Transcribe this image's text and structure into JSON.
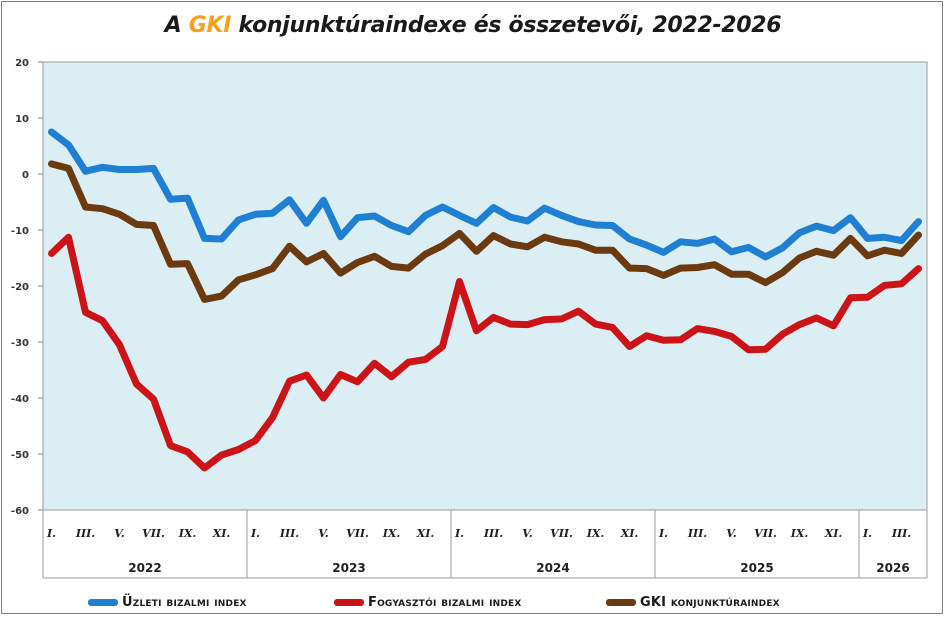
{
  "title": {
    "prefix": "A ",
    "accent": "GKI",
    "suffix": " konjunktúraindexe és összetevői, 2022-2026",
    "accent_color": "#f7a01e"
  },
  "chart_data": {
    "type": "line",
    "title": "A GKI konjunktúraindexe és összetevői, 2022-2026",
    "ylim": [
      -60,
      20
    ],
    "yticks": [
      20,
      10,
      0,
      -10,
      -20,
      -30,
      -40,
      -50,
      -60
    ],
    "grid": false,
    "legend_position": "bottom",
    "plot_background": "#dbeef4",
    "month_tick_labels": [
      "I.",
      "III.",
      "V.",
      "VII.",
      "IX.",
      "XI."
    ],
    "years": [
      "2022",
      "2023",
      "2024",
      "2025",
      "2026"
    ],
    "x_count": 52,
    "series": [
      {
        "name": "Üzleti bizalmi index",
        "color": "#1f7fd3",
        "values": [
          7.5,
          5.2,
          0.5,
          1.2,
          0.8,
          0.8,
          1.0,
          -4.5,
          -4.3,
          -11.5,
          -11.6,
          -8.2,
          -7.2,
          -7.0,
          -4.6,
          -8.8,
          -4.7,
          -11.2,
          -7.8,
          -7.5,
          -9.2,
          -10.3,
          -7.4,
          -5.9,
          -7.4,
          -8.8,
          -6.0,
          -7.7,
          -8.4,
          -6.1,
          -7.4,
          -8.5,
          -9.1,
          -9.2,
          -11.6,
          -12.7,
          -14.0,
          -12.1,
          -12.4,
          -11.6,
          -13.9,
          -13.1,
          -14.8,
          -13.2,
          -10.5,
          -9.3,
          -10.1,
          -7.8,
          -11.5,
          -11.3,
          -11.9,
          -8.5
        ]
      },
      {
        "name": "Fogyasztói bizalmi index",
        "color": "#cc1418",
        "values": [
          -14.2,
          -11.3,
          -24.7,
          -26.2,
          -30.5,
          -37.5,
          -40.2,
          -48.5,
          -49.6,
          -52.5,
          -50.2,
          -49.2,
          -47.6,
          -43.5,
          -37.0,
          -35.9,
          -40.0,
          -35.8,
          -37.1,
          -33.8,
          -36.2,
          -33.6,
          -33.1,
          -30.8,
          -19.2,
          -28.0,
          -25.6,
          -26.8,
          -26.9,
          -26.0,
          -25.9,
          -24.5,
          -26.8,
          -27.4,
          -30.8,
          -28.9,
          -29.7,
          -29.6,
          -27.6,
          -28.1,
          -29.0,
          -31.4,
          -31.3,
          -28.6,
          -26.9,
          -25.7,
          -27.1,
          -22.1,
          -22.0,
          -19.9,
          -19.6,
          -16.9
        ]
      },
      {
        "name": "GKI konjunktúraindex",
        "color": "#6b3a10",
        "values": [
          1.8,
          1.0,
          -5.9,
          -6.2,
          -7.2,
          -9.0,
          -9.2,
          -16.1,
          -16.0,
          -22.4,
          -21.8,
          -18.9,
          -18.0,
          -16.9,
          -12.9,
          -15.7,
          -14.2,
          -17.7,
          -15.8,
          -14.7,
          -16.5,
          -16.8,
          -14.3,
          -12.8,
          -10.6,
          -13.8,
          -11.0,
          -12.5,
          -13.0,
          -11.3,
          -12.1,
          -12.5,
          -13.6,
          -13.6,
          -16.8,
          -16.9,
          -18.1,
          -16.8,
          -16.7,
          -16.2,
          -17.9,
          -17.9,
          -19.4,
          -17.6,
          -15.0,
          -13.8,
          -14.5,
          -11.5,
          -14.6,
          -13.6,
          -14.2,
          -10.9
        ]
      }
    ]
  }
}
